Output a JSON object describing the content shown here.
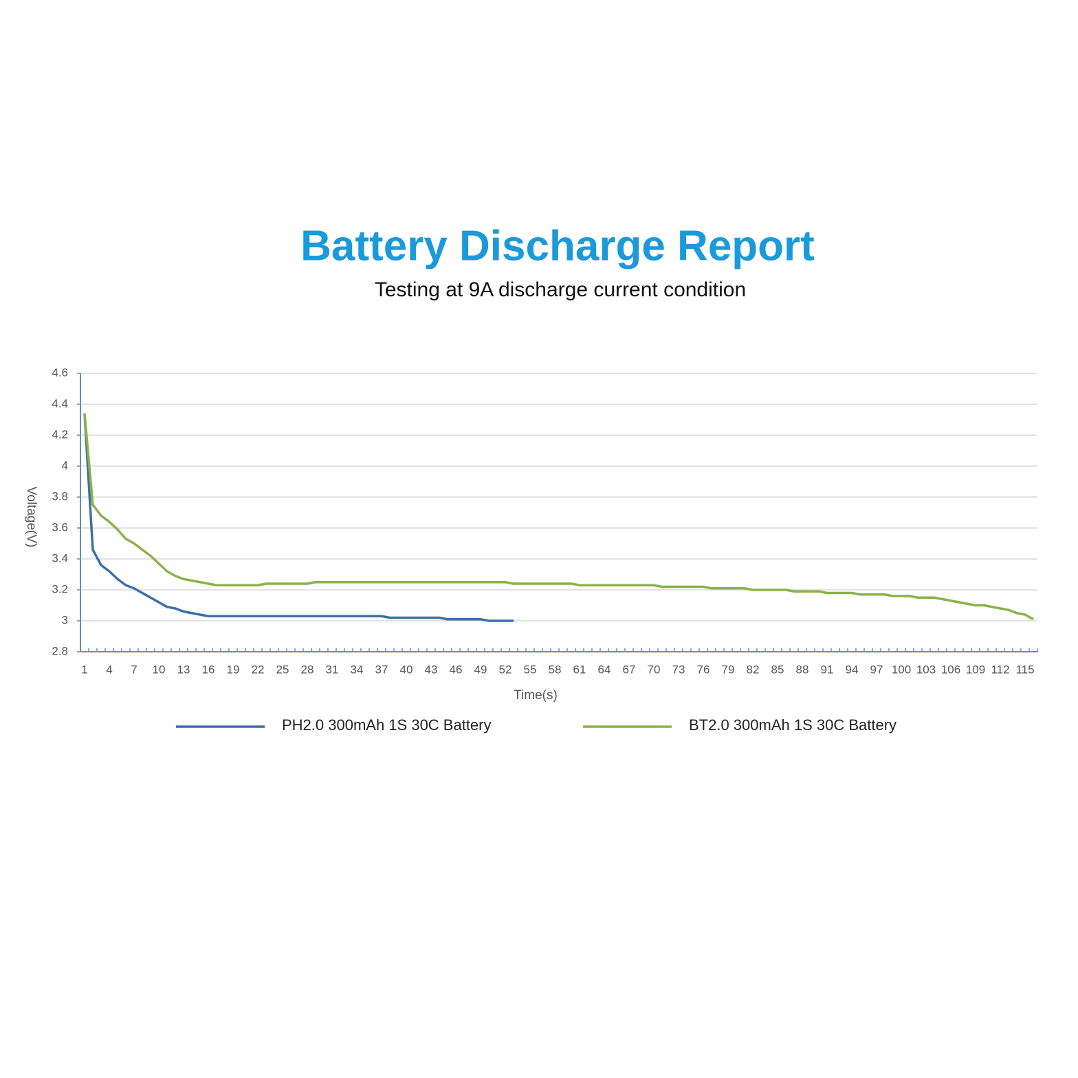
{
  "chart_data": {
    "type": "line",
    "title": "Battery Discharge Report",
    "subtitle": "Testing at 9A discharge current condition",
    "x_label": "Time(s)",
    "y_label": "Voltage(V)",
    "x": [
      1,
      2,
      3,
      4,
      5,
      6,
      7,
      8,
      9,
      10,
      11,
      12,
      13,
      14,
      15,
      16,
      17,
      18,
      19,
      20,
      21,
      22,
      23,
      24,
      25,
      26,
      27,
      28,
      29,
      30,
      31,
      32,
      33,
      34,
      35,
      36,
      37,
      38,
      39,
      40,
      41,
      42,
      43,
      44,
      45,
      46,
      47,
      48,
      49,
      50,
      51,
      52,
      53,
      54,
      55,
      56,
      57,
      58,
      59,
      60,
      61,
      62,
      63,
      64,
      65,
      66,
      67,
      68,
      69,
      70,
      71,
      72,
      73,
      74,
      75,
      76,
      77,
      78,
      79,
      80,
      81,
      82,
      83,
      84,
      85,
      86,
      87,
      88,
      89,
      90,
      91,
      92,
      93,
      94,
      95,
      96,
      97,
      98,
      99,
      100,
      101,
      102,
      103,
      104,
      105,
      106,
      107,
      108,
      109,
      110,
      111,
      112,
      113,
      114,
      115,
      116
    ],
    "xlim": [
      0.5,
      116.5
    ],
    "xticks": [
      1,
      4,
      7,
      10,
      13,
      16,
      19,
      22,
      25,
      28,
      31,
      34,
      37,
      40,
      43,
      46,
      49,
      52,
      55,
      58,
      61,
      64,
      67,
      70,
      73,
      76,
      79,
      82,
      85,
      88,
      91,
      94,
      97,
      100,
      103,
      106,
      109,
      112,
      115
    ],
    "ylim": [
      2.8,
      4.6
    ],
    "yticks": [
      2.8,
      3,
      3.2,
      3.4,
      3.6,
      3.8,
      4,
      4.2,
      4.4,
      4.6
    ],
    "grid": true,
    "legend": "bottom",
    "series": [
      {
        "name": "PH2.0 300mAh 1S 30C Battery",
        "color": "#3d6fa8",
        "values": [
          4.34,
          3.46,
          3.36,
          3.32,
          3.27,
          3.23,
          3.21,
          3.18,
          3.15,
          3.12,
          3.09,
          3.08,
          3.06,
          3.05,
          3.04,
          3.03,
          3.03,
          3.03,
          3.03,
          3.03,
          3.03,
          3.03,
          3.03,
          3.03,
          3.03,
          3.03,
          3.03,
          3.03,
          3.03,
          3.03,
          3.03,
          3.03,
          3.03,
          3.03,
          3.03,
          3.03,
          3.03,
          3.02,
          3.02,
          3.02,
          3.02,
          3.02,
          3.02,
          3.02,
          3.01,
          3.01,
          3.01,
          3.01,
          3.01,
          3.0,
          3.0,
          3.0,
          3.0,
          null,
          null,
          null,
          null,
          null,
          null,
          null,
          null,
          null,
          null,
          null,
          null,
          null,
          null,
          null,
          null,
          null,
          null,
          null,
          null,
          null,
          null,
          null,
          null,
          null,
          null,
          null,
          null,
          null,
          null,
          null,
          null,
          null,
          null,
          null,
          null,
          null,
          null,
          null,
          null,
          null,
          null,
          null,
          null,
          null,
          null,
          null,
          null,
          null,
          null,
          null,
          null,
          null,
          null,
          null,
          null,
          null,
          null,
          null,
          null,
          null,
          null,
          null
        ]
      },
      {
        "name": "BT2.0 300mAh 1S 30C Battery",
        "color": "#8cb14a",
        "values": [
          4.34,
          3.75,
          3.68,
          3.64,
          3.59,
          3.53,
          3.5,
          3.46,
          3.42,
          3.37,
          3.32,
          3.29,
          3.27,
          3.26,
          3.25,
          3.24,
          3.23,
          3.23,
          3.23,
          3.23,
          3.23,
          3.23,
          3.24,
          3.24,
          3.24,
          3.24,
          3.24,
          3.24,
          3.25,
          3.25,
          3.25,
          3.25,
          3.25,
          3.25,
          3.25,
          3.25,
          3.25,
          3.25,
          3.25,
          3.25,
          3.25,
          3.25,
          3.25,
          3.25,
          3.25,
          3.25,
          3.25,
          3.25,
          3.25,
          3.25,
          3.25,
          3.25,
          3.24,
          3.24,
          3.24,
          3.24,
          3.24,
          3.24,
          3.24,
          3.24,
          3.23,
          3.23,
          3.23,
          3.23,
          3.23,
          3.23,
          3.23,
          3.23,
          3.23,
          3.23,
          3.22,
          3.22,
          3.22,
          3.22,
          3.22,
          3.22,
          3.21,
          3.21,
          3.21,
          3.21,
          3.21,
          3.2,
          3.2,
          3.2,
          3.2,
          3.2,
          3.19,
          3.19,
          3.19,
          3.19,
          3.18,
          3.18,
          3.18,
          3.18,
          3.17,
          3.17,
          3.17,
          3.17,
          3.16,
          3.16,
          3.16,
          3.15,
          3.15,
          3.15,
          3.14,
          3.13,
          3.12,
          3.11,
          3.1,
          3.1,
          3.09,
          3.08,
          3.07,
          3.05,
          3.04,
          3.01
        ]
      }
    ]
  }
}
